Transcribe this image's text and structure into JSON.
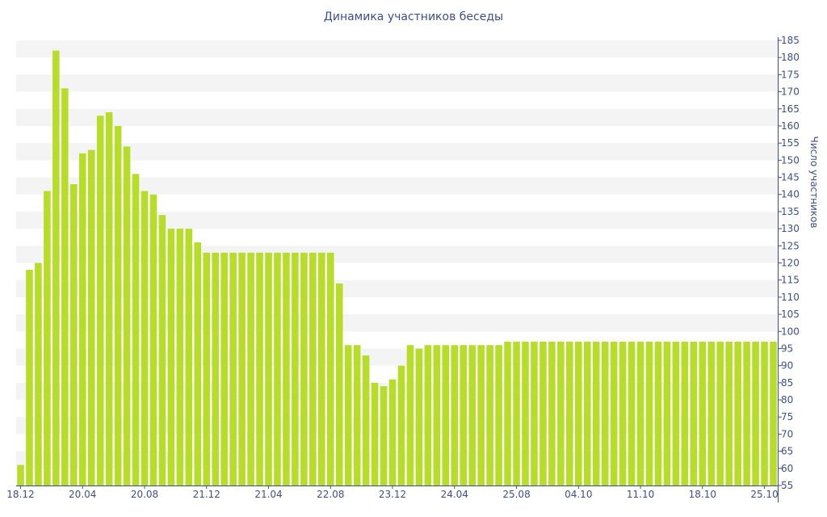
{
  "chart_data": {
    "type": "bar",
    "title": "Динамика участников беседы",
    "xlabel": "",
    "ylabel": "Число участников",
    "y_axis_position": "right",
    "ylim": [
      55,
      185
    ],
    "yticks": [
      55,
      60,
      65,
      70,
      75,
      80,
      85,
      90,
      95,
      100,
      105,
      110,
      115,
      120,
      125,
      130,
      135,
      140,
      145,
      150,
      155,
      160,
      165,
      170,
      175,
      180,
      185
    ],
    "grid": "alternating horizontal bands",
    "x_tick_labels": [
      {
        "label": "18.12",
        "index": 0
      },
      {
        "label": "20.04",
        "index": 7
      },
      {
        "label": "20.08",
        "index": 14
      },
      {
        "label": "21.12",
        "index": 21
      },
      {
        "label": "21.04",
        "index": 28
      },
      {
        "label": "22.08",
        "index": 35
      },
      {
        "label": "23.12",
        "index": 42
      },
      {
        "label": "24.04",
        "index": 49
      },
      {
        "label": "25.08",
        "index": 56
      },
      {
        "label": "04.10",
        "index": 63
      },
      {
        "label": "11.10",
        "index": 70
      },
      {
        "label": "18.10",
        "index": 77
      },
      {
        "label": "25.10",
        "index": 84
      }
    ],
    "series": [
      {
        "color": "#b8dc2a",
        "values": [
          61,
          118,
          120,
          141,
          182,
          171,
          143,
          152,
          153,
          163,
          164,
          160,
          154,
          146,
          141,
          140,
          134,
          130,
          130,
          130,
          126,
          123,
          123,
          123,
          123,
          123,
          123,
          123,
          123,
          123,
          123,
          123,
          123,
          123,
          123,
          123,
          114,
          96,
          96,
          93,
          85,
          84,
          86,
          90,
          96,
          95,
          96,
          96,
          96,
          96,
          96,
          96,
          96,
          96,
          96,
          97,
          97,
          97,
          97,
          97,
          97,
          97,
          97,
          97,
          97,
          97,
          97,
          97,
          97,
          97,
          97,
          97,
          97,
          97,
          97,
          97,
          97,
          97,
          97,
          97,
          97,
          97,
          97,
          97,
          97,
          97
        ]
      }
    ]
  }
}
